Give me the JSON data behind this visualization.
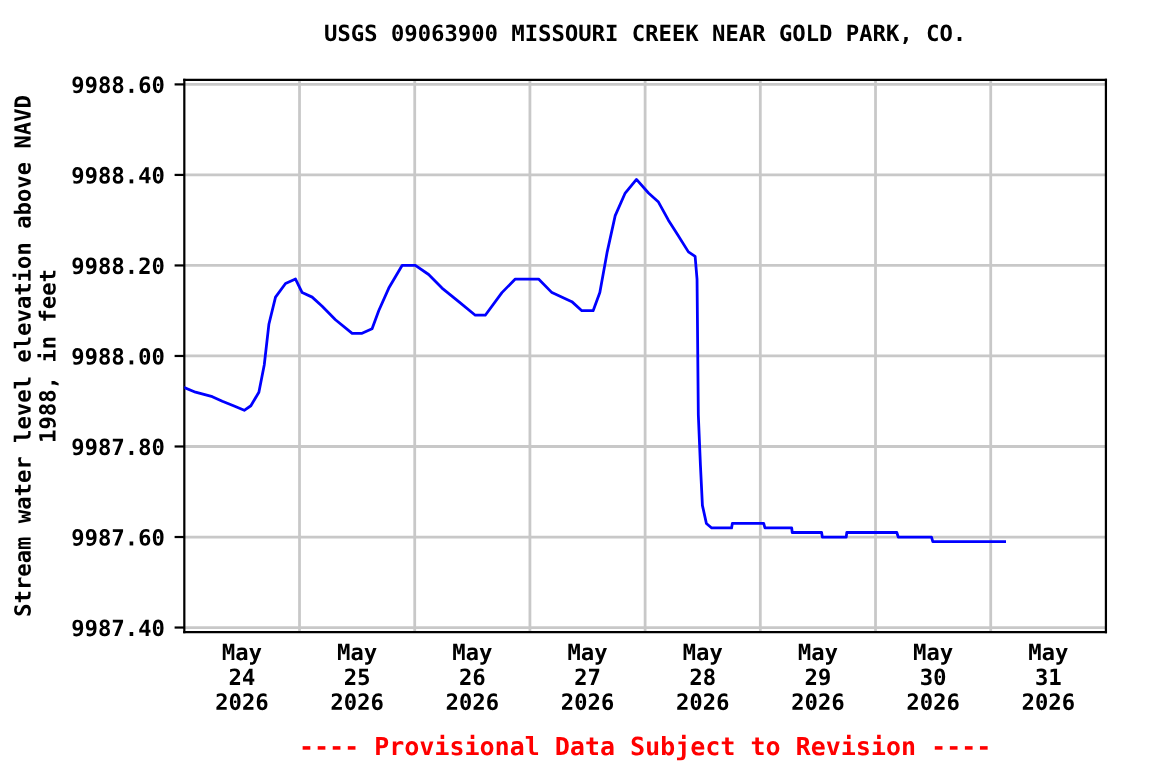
{
  "chart_data": {
    "type": "line",
    "title": "USGS 09063900 MISSOURI CREEK NEAR GOLD PARK, CO.",
    "ylabel": "Stream water level elevation above NAVD\n1988, in feet",
    "annotations": [
      "---- Provisional Data Subject to Revision ----"
    ],
    "series": [
      {
        "color": "#0000ff",
        "x": [
          "2026-05-24T00:00",
          "2026-05-24T02:20",
          "2026-05-24T05:50",
          "2026-05-24T07:55",
          "2026-05-24T10:15",
          "2026-05-24T12:29",
          "2026-05-24T13:52",
          "2026-05-24T15:32",
          "2026-05-24T16:39",
          "2026-05-24T17:37",
          "2026-05-24T19:00",
          "2026-05-24T21:05",
          "2026-05-24T23:10",
          "2026-05-25T00:33",
          "2026-05-25T02:38",
          "2026-05-25T04:43",
          "2026-05-25T07:29",
          "2026-05-25T10:58",
          "2026-05-25T13:02",
          "2026-05-25T15:07",
          "2026-05-25T16:30",
          "2026-05-25T18:36",
          "2026-05-25T21:22",
          "2026-05-26T00:08",
          "2026-05-26T02:54",
          "2026-05-26T05:41",
          "2026-05-26T09:10",
          "2026-05-26T12:37",
          "2026-05-26T14:42",
          "2026-05-26T18:10",
          "2026-05-26T20:57",
          "2026-05-27T01:48",
          "2026-05-27T04:35",
          "2026-05-27T08:44",
          "2026-05-27T10:49",
          "2026-05-27T13:10",
          "2026-05-27T14:34",
          "2026-05-27T16:06",
          "2026-05-27T17:46",
          "2026-05-27T19:51",
          "2026-05-27T22:12",
          "2026-05-28T00:42",
          "2026-05-28T02:47",
          "2026-05-28T04:51",
          "2026-05-28T06:39",
          "2026-05-28T09:01",
          "2026-05-28T10:25",
          "2026-05-28T10:49",
          "2026-05-28T11:05",
          "2026-05-28T11:31",
          "2026-05-28T11:56",
          "2026-05-28T12:46",
          "2026-05-28T13:52",
          "2026-05-28T18:01",
          "2026-05-28T18:10",
          "2026-05-29T00:42",
          "2026-05-29T00:58",
          "2026-05-29T06:32",
          "2026-05-29T06:39",
          "2026-05-29T12:46",
          "2026-05-29T12:55",
          "2026-05-29T17:54",
          "2026-05-29T18:01",
          "2026-05-30T04:26",
          "2026-05-30T04:44",
          "2026-05-30T11:40",
          "2026-05-30T11:56",
          "2026-05-31T02:54"
        ],
        "values": [
          9987.93,
          9987.92,
          9987.91,
          9987.9,
          9987.89,
          9987.88,
          9987.89,
          9987.92,
          9987.98,
          9988.07,
          9988.13,
          9988.16,
          9988.17,
          9988.14,
          9988.13,
          9988.11,
          9988.08,
          9988.05,
          9988.05,
          9988.06,
          9988.1,
          9988.15,
          9988.2,
          9988.2,
          9988.18,
          9988.15,
          9988.12,
          9988.09,
          9988.09,
          9988.14,
          9988.17,
          9988.17,
          9988.14,
          9988.12,
          9988.1,
          9988.1,
          9988.14,
          9988.23,
          9988.31,
          9988.36,
          9988.39,
          9988.36,
          9988.34,
          9988.3,
          9988.27,
          9988.23,
          9988.22,
          9988.17,
          9987.87,
          9987.76,
          9987.67,
          9987.63,
          9987.62,
          9987.62,
          9987.63,
          9987.63,
          9987.62,
          9987.62,
          9987.61,
          9987.61,
          9987.6,
          9987.6,
          9987.61,
          9987.61,
          9987.6,
          9987.6,
          9987.59,
          9987.59
        ]
      }
    ],
    "xlim": [
      "2026-05-24T00:00",
      "2026-06-01T00:00"
    ],
    "xticks": [
      {
        "value": "2026-05-24T12:00",
        "label": "May\n24\n2026"
      },
      {
        "value": "2026-05-25T12:00",
        "label": "May\n25\n2026"
      },
      {
        "value": "2026-05-26T12:00",
        "label": "May\n26\n2026"
      },
      {
        "value": "2026-05-27T12:00",
        "label": "May\n27\n2026"
      },
      {
        "value": "2026-05-28T12:00",
        "label": "May\n28\n2026"
      },
      {
        "value": "2026-05-29T12:00",
        "label": "May\n29\n2026"
      },
      {
        "value": "2026-05-30T12:00",
        "label": "May\n30\n2026"
      },
      {
        "value": "2026-05-31T12:00",
        "label": "May\n31\n2026"
      },
      {
        "value": "2026-05-25T00:00",
        "label": null
      },
      {
        "value": "2026-05-26T00:00",
        "label": null
      },
      {
        "value": "2026-05-27T00:00",
        "label": null
      },
      {
        "value": "2026-05-28T00:00",
        "label": null
      },
      {
        "value": "2026-05-29T00:00",
        "label": null
      },
      {
        "value": "2026-05-30T00:00",
        "label": null
      },
      {
        "value": "2026-05-31T00:00",
        "label": null
      }
    ],
    "ylim": [
      9987.39,
      9988.61
    ],
    "yticks": [
      {
        "value": 9987.4,
        "label": "9987.40"
      },
      {
        "value": 9987.6,
        "label": "9987.60"
      },
      {
        "value": 9987.8,
        "label": "9987.80"
      },
      {
        "value": 9988.0,
        "label": "9988.00"
      },
      {
        "value": 9988.2,
        "label": "9988.20"
      },
      {
        "value": 9988.4,
        "label": "9988.40"
      },
      {
        "value": 9988.6,
        "label": "9988.60"
      }
    ],
    "grid": true,
    "legend": false
  }
}
